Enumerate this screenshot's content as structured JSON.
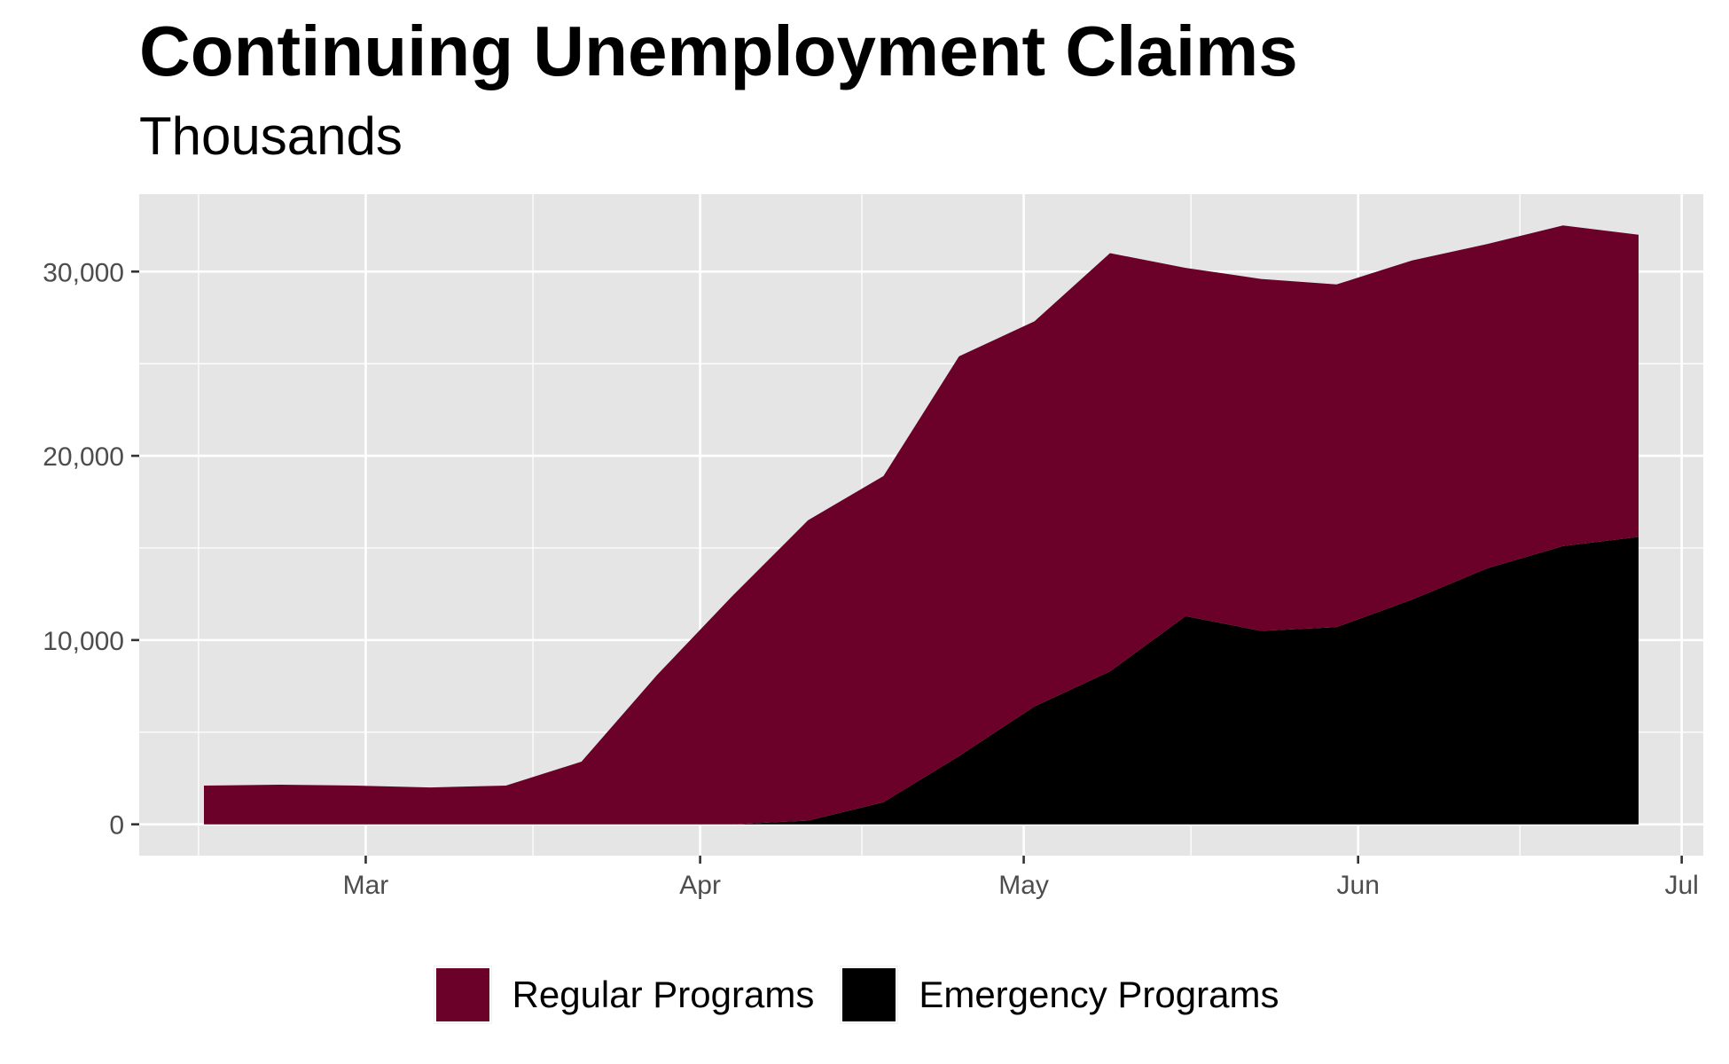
{
  "chart_data": {
    "type": "area",
    "stacked": true,
    "title": "Continuing Unemployment Claims",
    "subtitle": "Thousands",
    "x": [
      "2020-02-15",
      "2020-02-22",
      "2020-02-29",
      "2020-03-07",
      "2020-03-14",
      "2020-03-21",
      "2020-03-28",
      "2020-04-04",
      "2020-04-11",
      "2020-04-18",
      "2020-04-25",
      "2020-05-02",
      "2020-05-09",
      "2020-05-16",
      "2020-05-23",
      "2020-05-30",
      "2020-06-06",
      "2020-06-13",
      "2020-06-20",
      "2020-06-27"
    ],
    "series": [
      {
        "name": "Emergency Programs",
        "color": "#000000",
        "values": [
          0,
          0,
          0,
          0,
          0,
          0,
          0,
          0,
          200,
          1200,
          3700,
          6400,
          8300,
          11300,
          10500,
          10700,
          12200,
          13900,
          15100,
          15600
        ]
      },
      {
        "name": "Regular Programs",
        "color": "#6b0028",
        "values": [
          2100,
          2150,
          2100,
          2000,
          2100,
          3400,
          8100,
          12400,
          16300,
          17700,
          21700,
          20900,
          22700,
          18900,
          19100,
          18600,
          18400,
          17600,
          17400,
          16400
        ]
      }
    ],
    "xlim": [
      "2020-02-09",
      "2020-07-03"
    ],
    "x_ticks": [
      "2020-03-01",
      "2020-04-01",
      "2020-05-01",
      "2020-06-01",
      "2020-07-01"
    ],
    "x_tick_labels": [
      "Mar",
      "Apr",
      "May",
      "Jun",
      "Jul"
    ],
    "ylim": [
      -1700,
      34200
    ],
    "y_ticks": [
      0,
      10000,
      20000,
      30000
    ],
    "y_tick_labels": [
      "0",
      "10,000",
      "20,000",
      "30,000"
    ],
    "grid": true,
    "legend_position": "bottom",
    "legend": [
      "Regular Programs",
      "Emergency Programs"
    ]
  },
  "colors": {
    "panel_background": "#e5e5e5",
    "grid": "#ffffff",
    "regular": "#6b0028",
    "emergency": "#000000"
  }
}
